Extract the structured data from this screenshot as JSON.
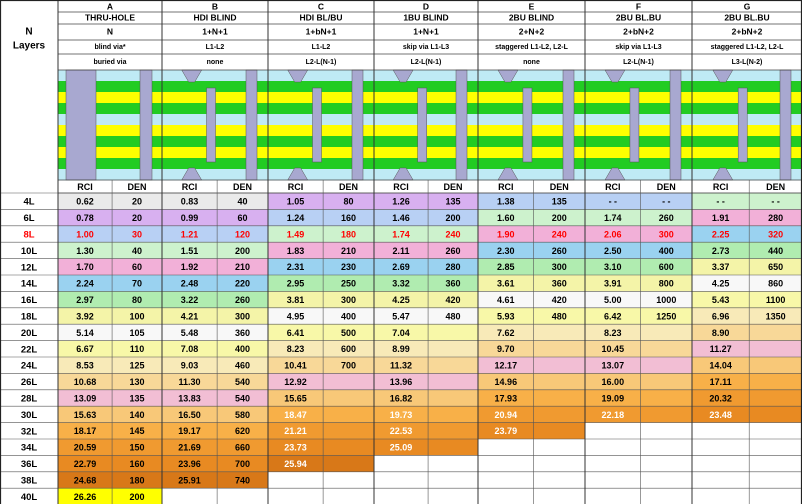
{
  "corner": {
    "line1": "N",
    "line2": "Layers"
  },
  "sub_labels": [
    "RCI",
    "DEN"
  ],
  "columns": [
    {
      "letter": "A",
      "name": "THRU-HOLE",
      "formula": "N",
      "info1": "blind via*",
      "info2": "buried via"
    },
    {
      "letter": "B",
      "name": "HDI BLIND",
      "formula": "1+N+1",
      "info1": "L1-L2",
      "info2": "none"
    },
    {
      "letter": "C",
      "name": "HDI BL/BU",
      "formula": "1+bN+1",
      "info1": "L1-L2",
      "info2": "L2-L(N-1)"
    },
    {
      "letter": "D",
      "name": "1BU BLIND",
      "formula": "1+N+1",
      "info1": "skip via L1-L3",
      "info2": "L2-L(N-1)"
    },
    {
      "letter": "E",
      "name": "2BU BLIND",
      "formula": "2+N+2",
      "info1": "staggered L1-L2, L2-L",
      "info2": "none"
    },
    {
      "letter": "F",
      "name": "2BU BL.BU",
      "formula": "2+bN+2",
      "info1": "skip via L1-L3",
      "info2": "L2-L(N-1)"
    },
    {
      "letter": "G",
      "name": "2BU BL.BU",
      "formula": "2+bN+2",
      "info1": "staggered L1-L2, L2-L",
      "info2": "L3-L(N-2)"
    }
  ],
  "rows": [
    {
      "layers": "4L",
      "highlight": false,
      "cells": [
        [
          "0.62",
          "20"
        ],
        [
          "0.83",
          "40"
        ],
        [
          "1.05",
          "80"
        ],
        [
          "1.26",
          "135"
        ],
        [
          "1.38",
          "135"
        ],
        [
          "- -",
          "- -"
        ],
        [
          "- -",
          "- -"
        ]
      ]
    },
    {
      "layers": "6L",
      "highlight": false,
      "cells": [
        [
          "0.78",
          "20"
        ],
        [
          "0.99",
          "60"
        ],
        [
          "1.24",
          "160"
        ],
        [
          "1.46",
          "200"
        ],
        [
          "1.60",
          "200"
        ],
        [
          "1.74",
          "260"
        ],
        [
          "1.91",
          "280"
        ]
      ]
    },
    {
      "layers": "8L",
      "highlight": true,
      "cells": [
        [
          "1.00",
          "30"
        ],
        [
          "1.21",
          "120"
        ],
        [
          "1.49",
          "180"
        ],
        [
          "1.74",
          "240"
        ],
        [
          "1.90",
          "240"
        ],
        [
          "2.06",
          "300"
        ],
        [
          "2.25",
          "320"
        ]
      ]
    },
    {
      "layers": "10L",
      "highlight": false,
      "cells": [
        [
          "1.30",
          "40"
        ],
        [
          "1.51",
          "200"
        ],
        [
          "1.83",
          "210"
        ],
        [
          "2.11",
          "260"
        ],
        [
          "2.30",
          "260"
        ],
        [
          "2.50",
          "400"
        ],
        [
          "2.73",
          "440"
        ]
      ]
    },
    {
      "layers": "12L",
      "highlight": false,
      "cells": [
        [
          "1.70",
          "60"
        ],
        [
          "1.92",
          "210"
        ],
        [
          "2.31",
          "230"
        ],
        [
          "2.69",
          "280"
        ],
        [
          "2.85",
          "300"
        ],
        [
          "3.10",
          "600"
        ],
        [
          "3.37",
          "650"
        ]
      ]
    },
    {
      "layers": "14L",
      "highlight": false,
      "cells": [
        [
          "2.24",
          "70"
        ],
        [
          "2.48",
          "220"
        ],
        [
          "2.95",
          "250"
        ],
        [
          "3.32",
          "360"
        ],
        [
          "3.61",
          "360"
        ],
        [
          "3.91",
          "800"
        ],
        [
          "4.25",
          "860"
        ]
      ]
    },
    {
      "layers": "16L",
      "highlight": false,
      "cells": [
        [
          "2.97",
          "80"
        ],
        [
          "3.22",
          "260"
        ],
        [
          "3.81",
          "300"
        ],
        [
          "4.25",
          "420"
        ],
        [
          "4.61",
          "420"
        ],
        [
          "5.00",
          "1000"
        ],
        [
          "5.43",
          "1100"
        ]
      ]
    },
    {
      "layers": "18L",
      "highlight": false,
      "cells": [
        [
          "3.92",
          "100"
        ],
        [
          "4.21",
          "300"
        ],
        [
          "4.95",
          "400"
        ],
        [
          "5.47",
          "480"
        ],
        [
          "5.93",
          "480"
        ],
        [
          "6.42",
          "1250"
        ],
        [
          "6.96",
          "1350"
        ]
      ]
    },
    {
      "layers": "20L",
      "highlight": false,
      "cells": [
        [
          "5.14",
          "105"
        ],
        [
          "5.48",
          "360"
        ],
        [
          "6.41",
          "500"
        ],
        [
          "7.04",
          ""
        ],
        [
          "7.62",
          ""
        ],
        [
          "8.23",
          ""
        ],
        [
          "8.90",
          ""
        ]
      ]
    },
    {
      "layers": "22L",
      "highlight": false,
      "cells": [
        [
          "6.67",
          "110"
        ],
        [
          "7.08",
          "400"
        ],
        [
          "8.23",
          "600"
        ],
        [
          "8.99",
          ""
        ],
        [
          "9.70",
          ""
        ],
        [
          "10.45",
          ""
        ],
        [
          "11.27",
          ""
        ]
      ]
    },
    {
      "layers": "24L",
      "highlight": false,
      "cells": [
        [
          "8.53",
          "125"
        ],
        [
          "9.03",
          "460"
        ],
        [
          "10.41",
          "700"
        ],
        [
          "11.32",
          ""
        ],
        [
          "12.17",
          ""
        ],
        [
          "13.07",
          ""
        ],
        [
          "14.04",
          ""
        ]
      ]
    },
    {
      "layers": "26L",
      "highlight": false,
      "cells": [
        [
          "10.68",
          "130"
        ],
        [
          "11.30",
          "540"
        ],
        [
          "12.92",
          ""
        ],
        [
          "13.96",
          ""
        ],
        [
          "14.96",
          ""
        ],
        [
          "16.00",
          ""
        ],
        [
          "17.11",
          ""
        ]
      ]
    },
    {
      "layers": "28L",
      "highlight": false,
      "cells": [
        [
          "13.09",
          "135"
        ],
        [
          "13.83",
          "540"
        ],
        [
          "15.65",
          ""
        ],
        [
          "16.82",
          ""
        ],
        [
          "17.93",
          ""
        ],
        [
          "19.09",
          ""
        ],
        [
          "20.32",
          ""
        ]
      ]
    },
    {
      "layers": "30L",
      "highlight": false,
      "cells": [
        [
          "15.63",
          "140"
        ],
        [
          "16.50",
          "580"
        ],
        [
          "18.47",
          ""
        ],
        [
          "19.73",
          ""
        ],
        [
          "20.94",
          ""
        ],
        [
          "22.18",
          ""
        ],
        [
          "23.48",
          ""
        ]
      ]
    },
    {
      "layers": "32L",
      "highlight": false,
      "cells": [
        [
          "18.17",
          "145"
        ],
        [
          "19.17",
          "620"
        ],
        [
          "21.21",
          ""
        ],
        [
          "22.53",
          ""
        ],
        [
          "23.79",
          ""
        ],
        [
          "",
          ""
        ],
        [
          "",
          ""
        ]
      ]
    },
    {
      "layers": "34L",
      "highlight": false,
      "cells": [
        [
          "20.59",
          "150"
        ],
        [
          "21.69",
          "660"
        ],
        [
          "23.73",
          ""
        ],
        [
          "25.09",
          ""
        ],
        [
          "",
          ""
        ],
        [
          "",
          ""
        ],
        [
          "",
          ""
        ]
      ]
    },
    {
      "layers": "36L",
      "highlight": false,
      "cells": [
        [
          "22.79",
          "160"
        ],
        [
          "23.96",
          "700"
        ],
        [
          "25.94",
          ""
        ],
        [
          "",
          ""
        ],
        [
          "",
          ""
        ],
        [
          "",
          ""
        ],
        [
          "",
          ""
        ]
      ]
    },
    {
      "layers": "38L",
      "highlight": false,
      "cells": [
        [
          "24.68",
          "180"
        ],
        [
          "25.91",
          "740"
        ],
        [
          "",
          ""
        ],
        [
          "",
          ""
        ],
        [
          "",
          ""
        ],
        [
          "",
          ""
        ],
        [
          "",
          ""
        ]
      ]
    },
    {
      "layers": "40L",
      "highlight": false,
      "cells": [
        [
          "26.26",
          "200"
        ],
        [
          "",
          ""
        ],
        [
          "",
          ""
        ],
        [
          "",
          ""
        ],
        [
          "",
          ""
        ],
        [
          "",
          ""
        ],
        [
          "",
          ""
        ]
      ]
    }
  ],
  "colors": {
    "header_bg": "#ffffff",
    "stack_green": "#22cc22",
    "stack_yellow": "#ffff00",
    "stack_cyan": "#bfeaf5",
    "via": "#a8a8d0",
    "highlight_text": "#ff0000",
    "band_rows": [
      "#e8e8e8",
      "#c89be8",
      "#a8c8f0",
      "#c8f0c8",
      "#80c8e8",
      "#a8e8a8",
      "#f0f0a0",
      "#f8f8f8",
      "#f8f8a0",
      "#f8f0b0",
      "#f8d890",
      "#f0b8d0",
      "#f8c870",
      "#f8a840",
      "#f09828",
      "#e88818",
      "#ffff00",
      "#ffff00",
      "#ffff00"
    ],
    "empty": "#ffffff"
  },
  "icons": [
    "via-stack-icon"
  ]
}
